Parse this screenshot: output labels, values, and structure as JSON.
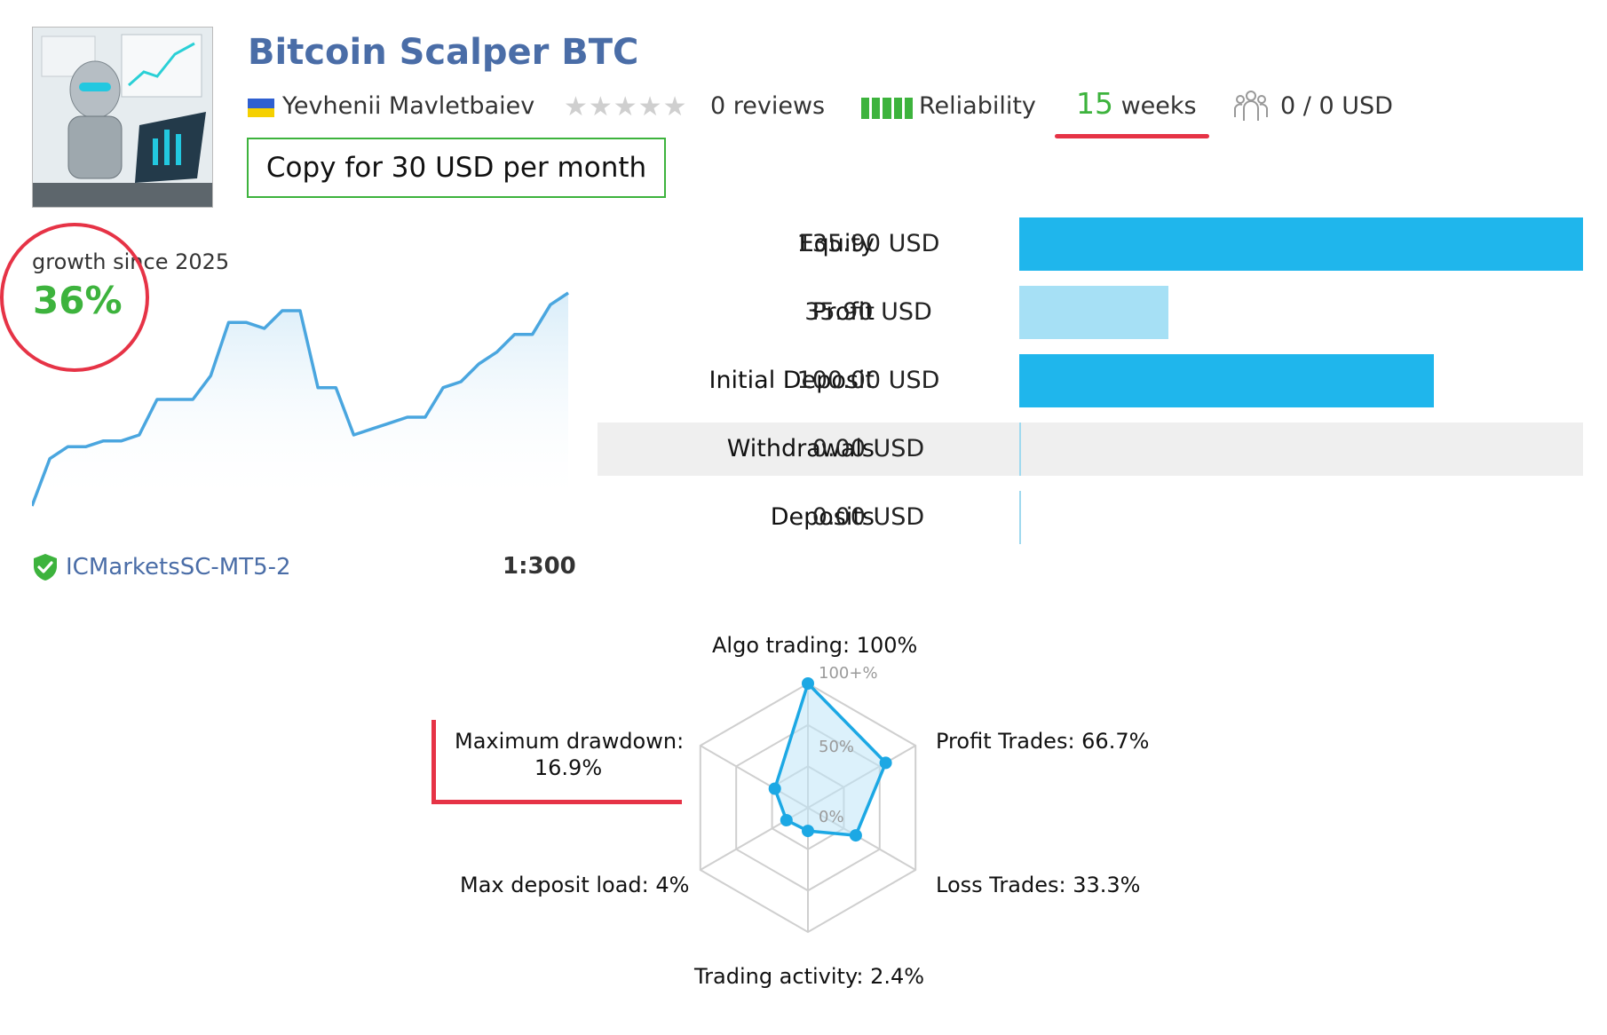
{
  "header": {
    "title": "Bitcoin Scalper BTC",
    "author": "Yevhenii Mavletbaiev",
    "reviews": "0 reviews",
    "rating_stars": 0,
    "reliability_label": "Reliability",
    "reliability_level": 5,
    "weeks_number": "15",
    "weeks_label": "weeks",
    "subscribers": "0 / 0 USD",
    "copy_button": "Copy for 30 USD per month"
  },
  "growth": {
    "label": "growth since 2025",
    "value": "36%",
    "server": "ICMarketsSC-MT5-2",
    "leverage": "1:300"
  },
  "stats": [
    {
      "label": "Equity",
      "value": "135.90 USD",
      "amount": 135.9
    },
    {
      "label": "Profit",
      "value": "35.90 USD",
      "amount": 35.9
    },
    {
      "label": "Initial Deposit",
      "value": "100.00 USD",
      "amount": 100.0
    },
    {
      "label": "Withdrawals",
      "value": "0.00 USD",
      "amount": 0
    },
    {
      "label": "Deposits",
      "value": "0.00 USD",
      "amount": 0
    }
  ],
  "radar": {
    "algo": "Algo trading: 100%",
    "profit": "Profit Trades: 66.7%",
    "loss": "Loss Trades: 33.3%",
    "activity": "Trading activity: 2.4%",
    "load": "Max deposit load: 4%",
    "drawdown_line1": "Maximum drawdown:",
    "drawdown_line2": "16.9%",
    "tick_100": "100+%",
    "tick_50": "50%",
    "tick_0": "0%"
  },
  "chart_data": [
    {
      "type": "area",
      "values": [
        0,
        8,
        10,
        10,
        11,
        11,
        12,
        18,
        18,
        18,
        22,
        31,
        31,
        30,
        33,
        33,
        20,
        20,
        12,
        13,
        14,
        15,
        15,
        20,
        21,
        24,
        26,
        29,
        29,
        34,
        36
      ],
      "ylim": [
        0,
        36
      ]
    },
    {
      "type": "radar",
      "categories": [
        "Algo trading",
        "Profit Trades",
        "Loss Trades",
        "Trading activity",
        "Max deposit load",
        "Maximum drawdown"
      ],
      "values": [
        100,
        66.7,
        33.3,
        2.4,
        4,
        16.9
      ],
      "ylim": [
        0,
        100
      ]
    }
  ],
  "colors": {
    "accent_blue": "#1fb6ec",
    "light_blue": "#a6e0f5",
    "green": "#3db33d",
    "title_blue": "#4a6da7",
    "highlight_red": "#e63346"
  }
}
